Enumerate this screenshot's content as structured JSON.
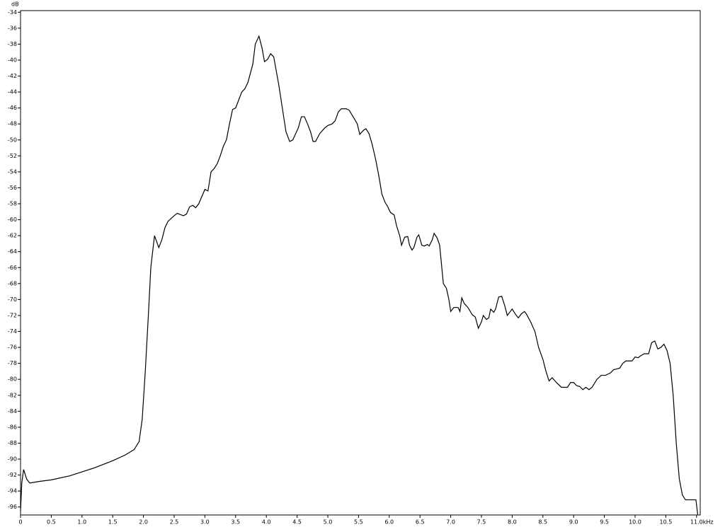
{
  "chart_data": {
    "type": "line",
    "y_label": "dB",
    "x_label": "kHz",
    "color": "#000000",
    "xlim": [
      0,
      11.06
    ],
    "ylim": [
      -97,
      -33.8
    ],
    "xticks": [
      0,
      0.5,
      {
        "value": 1,
        "label": "1.0"
      },
      1.5,
      {
        "value": 2,
        "label": "2.0"
      },
      2.5,
      {
        "value": 3,
        "label": "3.0"
      },
      3.5,
      {
        "value": 4,
        "label": "4.0"
      },
      4.5,
      {
        "value": 5,
        "label": "5.0"
      },
      5.5,
      {
        "value": 6,
        "label": "6.0"
      },
      6.5,
      {
        "value": 7,
        "label": "7.0"
      },
      7.5,
      {
        "value": 8,
        "label": "8.0"
      },
      8.5,
      {
        "value": 9,
        "label": "9.0"
      },
      9.5,
      {
        "value": 10,
        "label": "10.0"
      },
      10.5,
      {
        "value": 11,
        "label": "11.0"
      }
    ],
    "yticks": [
      -34,
      -36,
      -38,
      -40,
      -42,
      -44,
      -46,
      -48,
      -50,
      -52,
      -54,
      -56,
      -58,
      -60,
      -62,
      -64,
      -66,
      -68,
      -70,
      -72,
      -74,
      -76,
      -78,
      -80,
      -82,
      -84,
      -86,
      -88,
      -90,
      -92,
      -94,
      -96
    ],
    "x": [
      0,
      0.02,
      0.05,
      0.1,
      0.15,
      0.3,
      0.5,
      0.8,
      1.0,
      1.2,
      1.5,
      1.7,
      1.85,
      1.93,
      1.98,
      2.03,
      2.08,
      2.12,
      2.18,
      2.25,
      2.3,
      2.35,
      2.4,
      2.5,
      2.55,
      2.65,
      2.7,
      2.75,
      2.8,
      2.85,
      2.9,
      3.0,
      3.05,
      3.1,
      3.15,
      3.2,
      3.25,
      3.3,
      3.35,
      3.4,
      3.45,
      3.5,
      3.55,
      3.6,
      3.65,
      3.7,
      3.78,
      3.82,
      3.88,
      3.93,
      3.97,
      4.02,
      4.07,
      4.12,
      4.2,
      4.27,
      4.32,
      4.38,
      4.43,
      4.52,
      4.57,
      4.62,
      4.67,
      4.72,
      4.76,
      4.8,
      4.87,
      4.95,
      5.0,
      5.07,
      5.12,
      5.17,
      5.22,
      5.3,
      5.35,
      5.42,
      5.48,
      5.52,
      5.58,
      5.62,
      5.67,
      5.72,
      5.78,
      5.83,
      5.88,
      5.93,
      5.97,
      6.02,
      6.08,
      6.12,
      6.17,
      6.2,
      6.25,
      6.3,
      6.33,
      6.37,
      6.4,
      6.45,
      6.48,
      6.53,
      6.57,
      6.62,
      6.65,
      6.7,
      6.73,
      6.78,
      6.82,
      6.88,
      6.93,
      6.97,
      7.0,
      7.05,
      7.12,
      7.15,
      7.18,
      7.22,
      7.28,
      7.35,
      7.4,
      7.45,
      7.5,
      7.53,
      7.58,
      7.62,
      7.65,
      7.7,
      7.73,
      7.78,
      7.83,
      7.88,
      7.92,
      7.97,
      8.0,
      8.05,
      8.1,
      8.15,
      8.2,
      8.23,
      8.3,
      8.37,
      8.43,
      8.5,
      8.55,
      8.6,
      8.65,
      8.72,
      8.8,
      8.9,
      8.95,
      9.0,
      9.05,
      9.1,
      9.15,
      9.2,
      9.25,
      9.3,
      9.38,
      9.45,
      9.52,
      9.6,
      9.65,
      9.75,
      9.8,
      9.85,
      9.95,
      10.0,
      10.05,
      10.1,
      10.15,
      10.22,
      10.27,
      10.32,
      10.37,
      10.42,
      10.47,
      10.52,
      10.57,
      10.62,
      10.67,
      10.72,
      10.77,
      10.82,
      10.9,
      10.99,
      11.02
    ],
    "values": [
      -96.5,
      -93,
      -91.3,
      -92.5,
      -93,
      -92.8,
      -92.6,
      -92.1,
      -91.6,
      -91.1,
      -90.2,
      -89.5,
      -88.8,
      -87.8,
      -85,
      -79,
      -72,
      -66,
      -62,
      -63.5,
      -62.5,
      -61,
      -60.2,
      -59.5,
      -59.2,
      -59.5,
      -59.3,
      -58.4,
      -58.2,
      -58.5,
      -58,
      -56.2,
      -56.4,
      -54,
      -53.6,
      -53,
      -52,
      -50.8,
      -50,
      -48,
      -46.2,
      -46,
      -45,
      -44,
      -43.6,
      -42.8,
      -40.5,
      -38,
      -37,
      -38.5,
      -40.2,
      -39.9,
      -39.2,
      -39.6,
      -43,
      -46.5,
      -49,
      -50.2,
      -50,
      -48.5,
      -47.1,
      -47.1,
      -48,
      -49,
      -50.2,
      -50.2,
      -49.2,
      -48.5,
      -48.2,
      -48,
      -47.6,
      -46.5,
      -46.1,
      -46.1,
      -46.3,
      -47.2,
      -48,
      -49.3,
      -48.8,
      -48.6,
      -49.2,
      -50.5,
      -52.5,
      -54.5,
      -56.8,
      -57.8,
      -58.3,
      -59.1,
      -59.4,
      -60.8,
      -62,
      -63.2,
      -62.2,
      -62.1,
      -63.2,
      -63.8,
      -63.5,
      -62.2,
      -61.9,
      -63.2,
      -63.3,
      -63.1,
      -63.3,
      -62.5,
      -61.7,
      -62.3,
      -63.2,
      -68,
      -68.6,
      -70,
      -71.5,
      -71,
      -71,
      -71.5,
      -69.8,
      -70.5,
      -71,
      -71.9,
      -72.2,
      -73.6,
      -72.8,
      -72,
      -72.5,
      -72.3,
      -71.2,
      -71.6,
      -71.2,
      -69.7,
      -69.6,
      -70.8,
      -72,
      -71.5,
      -71.2,
      -71.8,
      -72.3,
      -71.8,
      -71.5,
      -71.8,
      -72.8,
      -74,
      -76,
      -77.5,
      -79,
      -80.2,
      -79.8,
      -80.4,
      -81,
      -81,
      -80.4,
      -80.4,
      -80.8,
      -80.9,
      -81.3,
      -81,
      -81.3,
      -81,
      -80,
      -79.5,
      -79.5,
      -79.2,
      -78.8,
      -78.6,
      -78,
      -77.7,
      -77.7,
      -77.2,
      -77.3,
      -77,
      -76.8,
      -76.8,
      -75.4,
      -75.2,
      -76.2,
      -76,
      -75.6,
      -76.4,
      -78,
      -82,
      -88,
      -92.5,
      -94.5,
      -95.1,
      -95.1,
      -95.1,
      -97
    ]
  }
}
